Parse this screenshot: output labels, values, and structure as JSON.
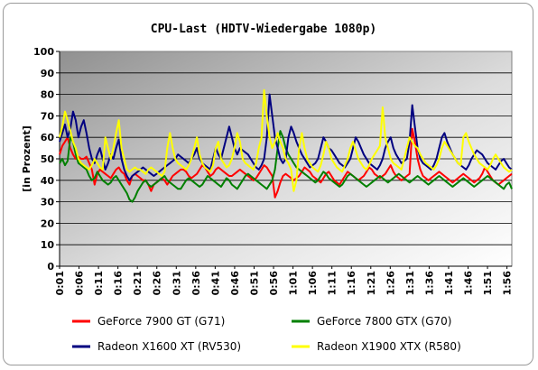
{
  "chart_data": {
    "type": "line",
    "title": "CPU-Last (HDTV-Wiedergabe 1080p)",
    "xlabel": "",
    "ylabel": "[in Prozent]",
    "ylim": [
      0,
      100
    ],
    "yticks": [
      "0",
      "10",
      "20",
      "30",
      "40",
      "50",
      "60",
      "70",
      "80",
      "90",
      "100"
    ],
    "xticks": [
      "0:01",
      "0:06",
      "0:11",
      "0:16",
      "0:21",
      "0:26",
      "0:31",
      "0:36",
      "0:41",
      "0:46",
      "0:51",
      "0:56",
      "1:01",
      "1:06",
      "1:11",
      "1:16",
      "1:21",
      "1:26",
      "1:31",
      "1:36",
      "1:41",
      "1:46",
      "1:51",
      "1:56"
    ],
    "grid": true,
    "legend_position": "bottom",
    "series": [
      {
        "name": "GeForce 7900 GT (G71)",
        "color": "#ff0000",
        "values": [
          52,
          56,
          58,
          60,
          55,
          52,
          50,
          51,
          50,
          50,
          51,
          48,
          45,
          38,
          43,
          45,
          44,
          43,
          42,
          41,
          43,
          45,
          46,
          44,
          43,
          40,
          38,
          42,
          43,
          42,
          41,
          40,
          40,
          38,
          35,
          38,
          39,
          40,
          41,
          40,
          38,
          40,
          42,
          43,
          44,
          45,
          45,
          44,
          42,
          41,
          42,
          43,
          45,
          47,
          46,
          44,
          42,
          43,
          45,
          46,
          45,
          44,
          43,
          42,
          42,
          43,
          44,
          45,
          44,
          43,
          42,
          41,
          40,
          41,
          43,
          45,
          47,
          46,
          44,
          42,
          32,
          35,
          39,
          42,
          43,
          42,
          41,
          40,
          41,
          42,
          44,
          46,
          45,
          44,
          42,
          41,
          40,
          39,
          41,
          43,
          44,
          42,
          40,
          39,
          38,
          40,
          42,
          44,
          43,
          42,
          41,
          40,
          41,
          42,
          44,
          46,
          45,
          43,
          42,
          41,
          42,
          43,
          45,
          47,
          44,
          42,
          41,
          40,
          41,
          42,
          43,
          64,
          58,
          50,
          45,
          42,
          41,
          40,
          41,
          42,
          43,
          44,
          43,
          42,
          41,
          40,
          39,
          40,
          41,
          42,
          43,
          42,
          41,
          40,
          39,
          40,
          41,
          43,
          46,
          44,
          42,
          40,
          39,
          38,
          39,
          40,
          41,
          42,
          43
        ]
      },
      {
        "name": "GeForce 7800 GTX (G70)",
        "color": "#008000",
        "values": [
          48,
          50,
          47,
          49,
          60,
          58,
          52,
          48,
          47,
          46,
          45,
          42,
          40,
          41,
          44,
          42,
          40,
          39,
          38,
          39,
          41,
          42,
          40,
          38,
          36,
          34,
          31,
          30,
          32,
          35,
          37,
          39,
          40,
          38,
          37,
          38,
          39,
          40,
          41,
          42,
          40,
          39,
          38,
          37,
          36,
          36,
          38,
          40,
          41,
          40,
          39,
          38,
          37,
          38,
          40,
          42,
          41,
          40,
          39,
          38,
          37,
          39,
          41,
          40,
          38,
          37,
          36,
          38,
          40,
          42,
          43,
          42,
          41,
          40,
          39,
          38,
          37,
          36,
          38,
          40,
          45,
          55,
          63,
          60,
          55,
          52,
          50,
          48,
          46,
          45,
          44,
          43,
          42,
          41,
          40,
          39,
          40,
          42,
          44,
          43,
          41,
          40,
          39,
          38,
          37,
          38,
          40,
          42,
          43,
          42,
          41,
          40,
          39,
          38,
          37,
          38,
          39,
          40,
          41,
          42,
          41,
          40,
          39,
          40,
          41,
          42,
          43,
          42,
          41,
          40,
          39,
          40,
          41,
          42,
          41,
          40,
          39,
          38,
          39,
          40,
          41,
          42,
          41,
          40,
          39,
          38,
          37,
          38,
          39,
          40,
          41,
          40,
          39,
          38,
          37,
          38,
          39,
          40,
          41,
          42,
          41,
          40,
          39,
          38,
          37,
          36,
          38,
          39,
          36
        ]
      },
      {
        "name": "Radeon X1600 XT (RV530)",
        "color": "#000080",
        "values": [
          58,
          62,
          66,
          60,
          64,
          72,
          68,
          60,
          65,
          68,
          62,
          55,
          50,
          48,
          52,
          55,
          50,
          45,
          48,
          52,
          50,
          55,
          59,
          50,
          45,
          42,
          40,
          42,
          43,
          44,
          45,
          46,
          45,
          44,
          43,
          42,
          43,
          44,
          45,
          46,
          47,
          48,
          49,
          50,
          52,
          51,
          50,
          49,
          48,
          50,
          52,
          55,
          50,
          48,
          47,
          46,
          45,
          50,
          55,
          52,
          50,
          55,
          60,
          65,
          60,
          55,
          52,
          55,
          54,
          53,
          52,
          50,
          48,
          46,
          45,
          47,
          50,
          60,
          80,
          70,
          60,
          55,
          50,
          48,
          50,
          60,
          65,
          62,
          58,
          55,
          52,
          50,
          48,
          46,
          47,
          48,
          50,
          55,
          60,
          58,
          55,
          54,
          52,
          50,
          48,
          47,
          46,
          48,
          50,
          55,
          60,
          58,
          55,
          52,
          50,
          48,
          47,
          46,
          45,
          47,
          50,
          55,
          58,
          60,
          55,
          52,
          50,
          48,
          49,
          50,
          58,
          75,
          65,
          55,
          50,
          48,
          47,
          46,
          45,
          47,
          50,
          55,
          60,
          62,
          58,
          55,
          52,
          50,
          48,
          47,
          46,
          45,
          47,
          50,
          52,
          54,
          53,
          52,
          50,
          48,
          47,
          46,
          45,
          47,
          49,
          50,
          48,
          46,
          45
        ]
      },
      {
        "name": "Radeon X1900 XTX (R580)",
        "color": "#ffff00",
        "values": [
          60,
          65,
          72,
          68,
          63,
          58,
          55,
          50,
          48,
          47,
          46,
          45,
          47,
          50,
          48,
          46,
          45,
          60,
          55,
          50,
          55,
          62,
          68,
          55,
          50,
          45,
          44,
          45,
          46,
          45,
          45,
          44,
          43,
          45,
          46,
          45,
          44,
          43,
          42,
          44,
          55,
          62,
          55,
          50,
          48,
          47,
          46,
          45,
          47,
          50,
          55,
          60,
          52,
          48,
          46,
          45,
          44,
          47,
          55,
          58,
          50,
          48,
          46,
          47,
          50,
          55,
          62,
          58,
          50,
          48,
          47,
          46,
          45,
          48,
          55,
          60,
          82,
          70,
          60,
          55,
          58,
          62,
          58,
          55,
          50,
          48,
          45,
          35,
          40,
          55,
          62,
          55,
          50,
          48,
          46,
          45,
          44,
          47,
          52,
          58,
          55,
          50,
          48,
          46,
          45,
          44,
          47,
          50,
          55,
          58,
          54,
          50,
          48,
          46,
          45,
          47,
          50,
          52,
          54,
          56,
          74,
          60,
          55,
          50,
          48,
          47,
          46,
          45,
          50,
          55,
          60,
          58,
          56,
          55,
          52,
          50,
          48,
          47,
          46,
          45,
          47,
          50,
          55,
          58,
          56,
          54,
          52,
          50,
          48,
          47,
          60,
          62,
          58,
          55,
          52,
          50,
          48,
          47,
          46,
          45,
          47,
          50,
          52,
          50,
          48,
          46,
          45,
          44,
          45
        ]
      }
    ]
  }
}
